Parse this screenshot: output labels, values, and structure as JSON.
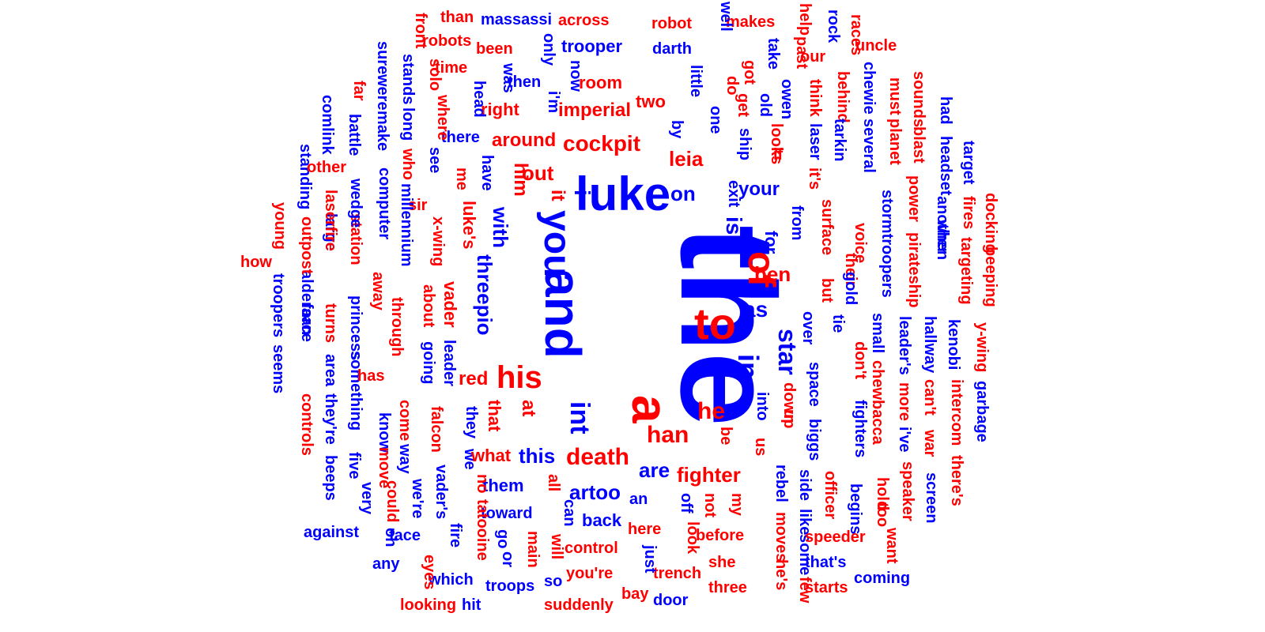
{
  "colors": {
    "red": "#ff0000",
    "blue": "#0000ff",
    "background": "#ffffff"
  },
  "words": [
    "the",
    "and",
    "a",
    "luke",
    "you",
    "of",
    "his",
    "to",
    "in",
    "int",
    "cockpit",
    "death",
    "han",
    "star",
    "is",
    "out",
    "leia",
    "ben",
    "on",
    "i",
    "as",
    "he",
    "it",
    "threepio",
    "him",
    "with",
    "this",
    "your",
    "fighter",
    "are",
    "artoo",
    "at",
    "that",
    "red",
    "for",
    "imperial",
    "around",
    "right",
    "room",
    "two",
    "trooper",
    "robot",
    "makes",
    "massassi",
    "across",
    "than",
    "robots",
    "been",
    "time",
    "darth",
    "uncle",
    "our",
    "then",
    "there",
    "little",
    "one",
    "head",
    "i'm",
    "only",
    "was",
    "now",
    "owen",
    "old",
    "do",
    "got",
    "take",
    "well",
    "rock",
    "races",
    "help",
    "past",
    "think",
    "behind",
    "chewie",
    "must",
    "sounds",
    "had",
    "target",
    "laser",
    "it's",
    "tarkin",
    "several",
    "planet",
    "blast",
    "headset",
    "ship",
    "get",
    "looks",
    "if",
    "exit",
    "from",
    "surface",
    "their",
    "stormtroopers",
    "power",
    "another",
    "fires",
    "docking",
    "beeping",
    "targeting",
    "when",
    "pirateship",
    "voice",
    "gold",
    "but",
    "over",
    "tie",
    "small",
    "leader's",
    "hallway",
    "kenobi",
    "y-wing",
    "garbage",
    "intercom",
    "can't",
    "war",
    "more",
    "i've",
    "chewbacca",
    "don't",
    "space",
    "biggs",
    "fighters",
    "down",
    "up",
    "into",
    "us",
    "be",
    "officer",
    "begins",
    "too",
    "hold",
    "speaker",
    "screen",
    "there's",
    "side",
    "like",
    "some",
    "rebel",
    "moves",
    "he's",
    "few",
    "speeder",
    "that's",
    "starts",
    "want",
    "coming",
    "my",
    "not",
    "off",
    "an",
    "back",
    "toward",
    "them",
    "all",
    "can",
    "before",
    "look",
    "here",
    "you're",
    "control",
    "trench",
    "she",
    "three",
    "bay",
    "door",
    "just",
    "so",
    "will",
    "troops",
    "main",
    "or",
    "go",
    "which",
    "hit",
    "suddenly",
    "looking",
    "any",
    "eyes",
    "fire",
    "face",
    "oh",
    "we're",
    "could",
    "against",
    "very",
    "five",
    "beeps",
    "controls",
    "they're",
    "area",
    "seems",
    "force",
    "troopers",
    "alderaan",
    "princess",
    "something",
    "turns",
    "know",
    "move",
    "come",
    "way",
    "vader's",
    "falcon",
    "we",
    "they",
    "no",
    "tatooine",
    "what",
    "vader",
    "leader",
    "going",
    "about",
    "through",
    "has",
    "luke's",
    "x-wing",
    "sir",
    "millennium",
    "see",
    "me",
    "have",
    "station",
    "wedge",
    "computer",
    "away",
    "large",
    "laserfire",
    "outpost",
    "how",
    "young",
    "standing",
    "comlink",
    "battle",
    "other",
    "make",
    "were",
    "far",
    "sure",
    "stands",
    "long",
    "who",
    "where",
    "solo",
    "front",
    "by"
  ]
}
